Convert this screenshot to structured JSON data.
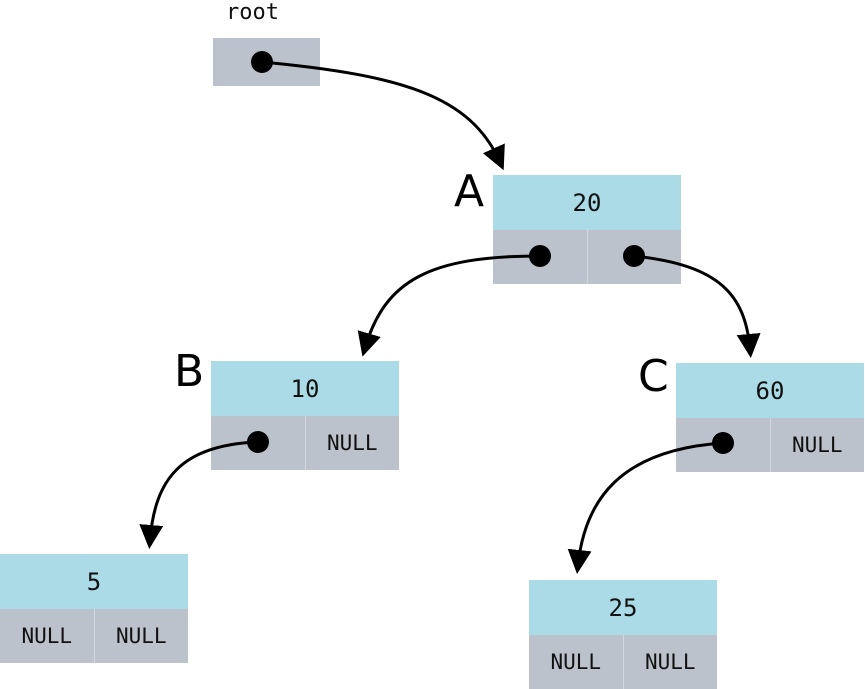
{
  "root": {
    "label": "root"
  },
  "nodes": {
    "A": {
      "letter": "A",
      "value": "20",
      "left": "",
      "right": ""
    },
    "B": {
      "letter": "B",
      "value": "10",
      "left": "",
      "right": "NULL"
    },
    "C": {
      "letter": "C",
      "value": "60",
      "left": "",
      "right": "NULL"
    },
    "D": {
      "value": "5",
      "left": "NULL",
      "right": "NULL"
    },
    "E": {
      "value": "25",
      "left": "NULL",
      "right": "NULL"
    }
  }
}
